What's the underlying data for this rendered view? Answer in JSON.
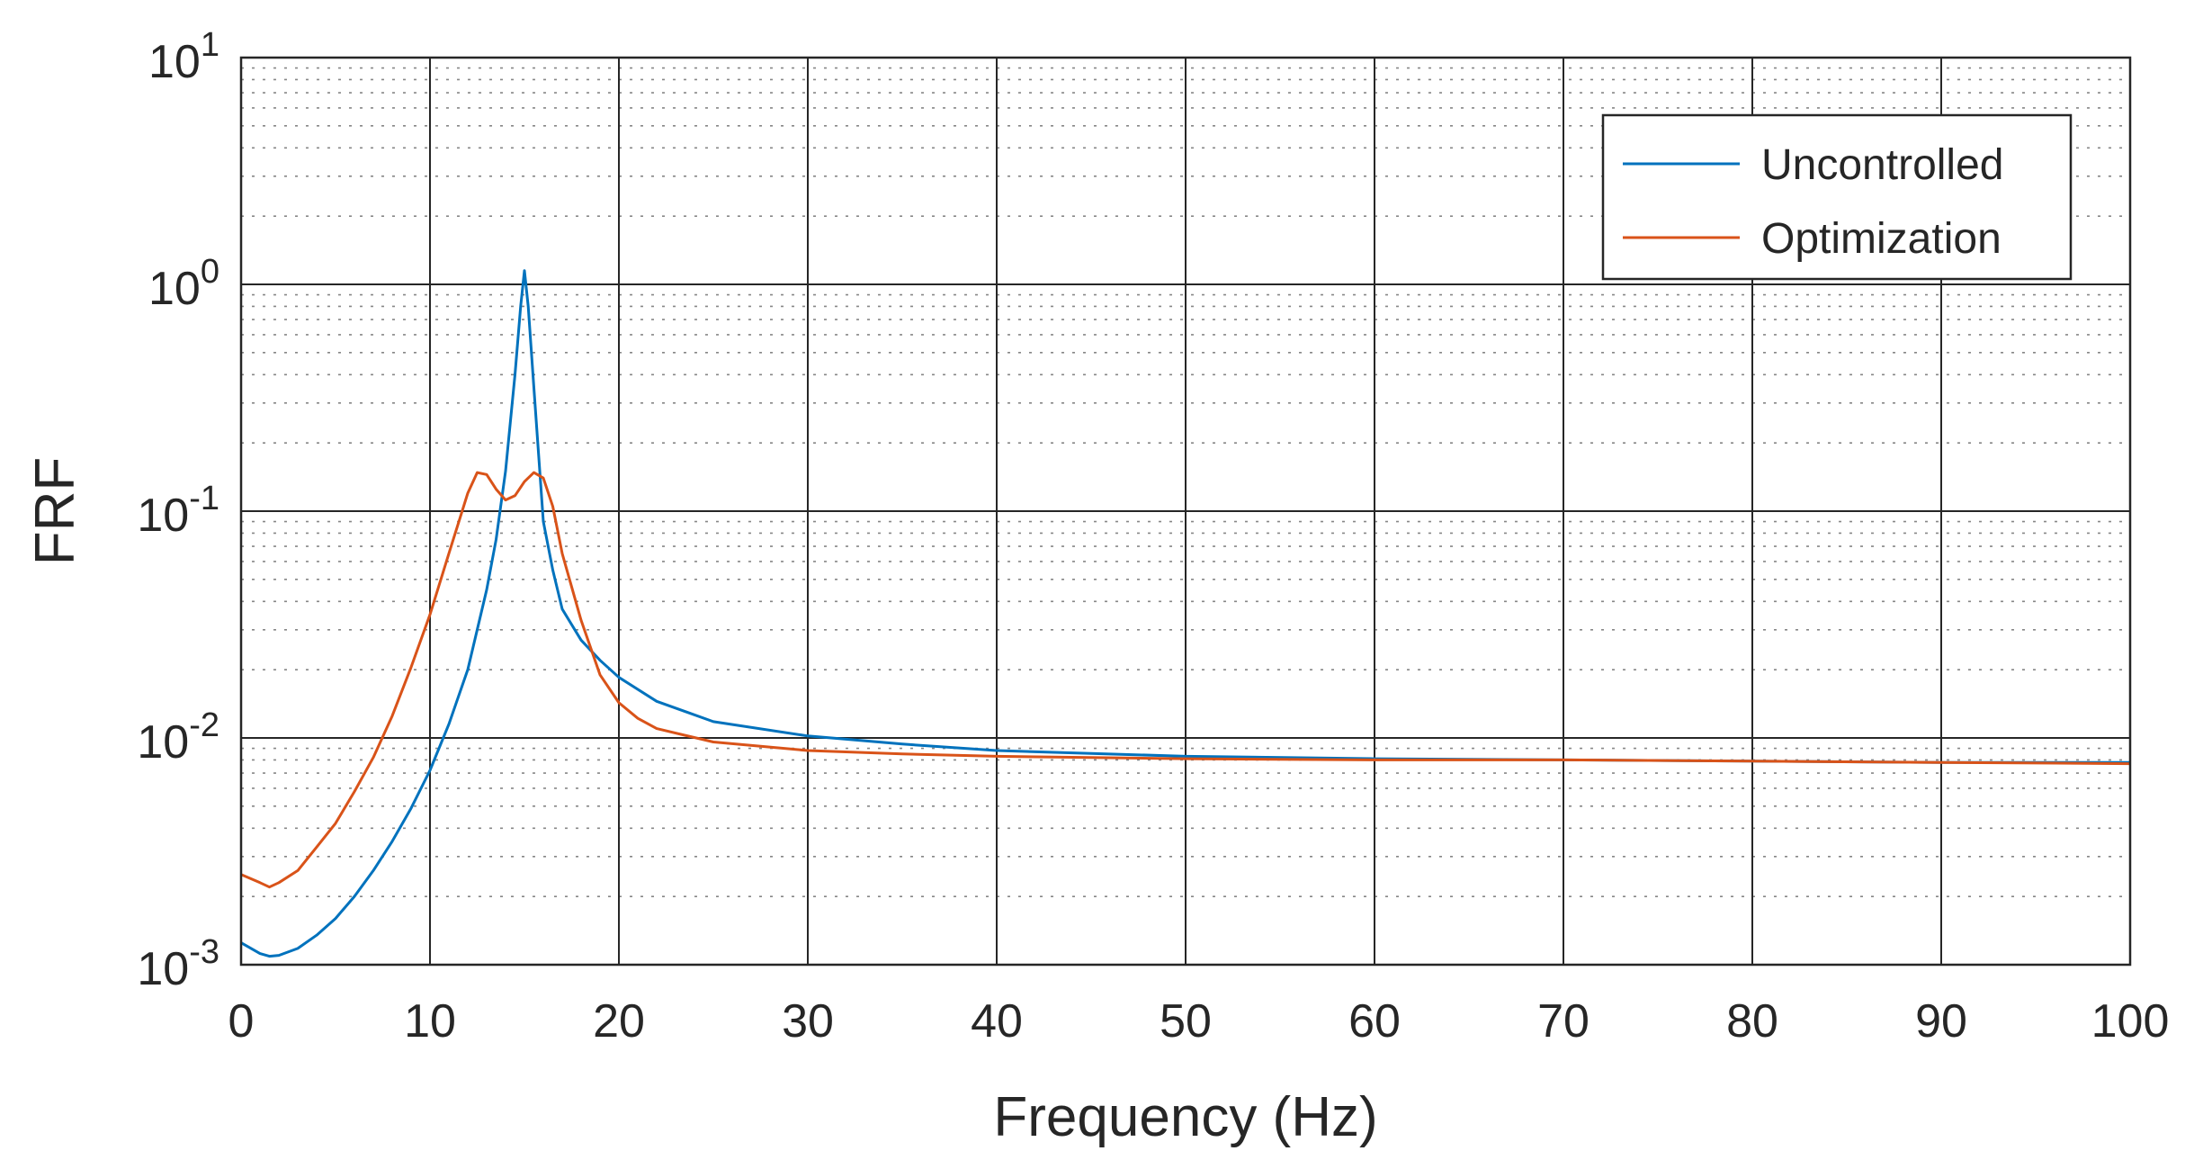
{
  "chart_data": {
    "type": "line",
    "xlabel": "Frequency (Hz)",
    "ylabel": "FRF",
    "xlim": [
      0,
      100
    ],
    "ylim": [
      0.001,
      10
    ],
    "yscale": "log",
    "grid": true,
    "minor_grid": true,
    "legend_position": "top-right",
    "x_ticks": [
      "0",
      "10",
      "20",
      "30",
      "40",
      "50",
      "60",
      "70",
      "80",
      "90",
      "100"
    ],
    "y_ticks": [
      {
        "base": "10",
        "exp": "-3",
        "value": 0.001
      },
      {
        "base": "10",
        "exp": "-2",
        "value": 0.01
      },
      {
        "base": "10",
        "exp": "-1",
        "value": 0.1
      },
      {
        "base": "10",
        "exp": "0",
        "value": 1
      },
      {
        "base": "10",
        "exp": "1",
        "value": 10
      }
    ],
    "series": [
      {
        "name": "Uncontrolled",
        "color": "#0072BD",
        "points": [
          [
            0,
            0.00125
          ],
          [
            1,
            0.00112
          ],
          [
            1.5,
            0.00109
          ],
          [
            2,
            0.0011
          ],
          [
            3,
            0.00118
          ],
          [
            4,
            0.00135
          ],
          [
            5,
            0.0016
          ],
          [
            6,
            0.002
          ],
          [
            7,
            0.0026
          ],
          [
            8,
            0.0035
          ],
          [
            9,
            0.0049
          ],
          [
            10,
            0.0072
          ],
          [
            11,
            0.0115
          ],
          [
            12,
            0.02
          ],
          [
            13,
            0.045
          ],
          [
            13.5,
            0.075
          ],
          [
            14,
            0.15
          ],
          [
            14.5,
            0.4
          ],
          [
            14.8,
            0.8
          ],
          [
            15.0,
            1.15
          ],
          [
            15.2,
            0.8
          ],
          [
            15.5,
            0.35
          ],
          [
            16,
            0.09
          ],
          [
            16.5,
            0.055
          ],
          [
            17,
            0.037
          ],
          [
            18,
            0.027
          ],
          [
            19,
            0.022
          ],
          [
            20,
            0.0185
          ],
          [
            22,
            0.0145
          ],
          [
            25,
            0.0118
          ],
          [
            30,
            0.0102
          ],
          [
            35,
            0.0094
          ],
          [
            40,
            0.0088
          ],
          [
            50,
            0.0083
          ],
          [
            60,
            0.0081
          ],
          [
            70,
            0.008
          ],
          [
            80,
            0.0079
          ],
          [
            90,
            0.0078
          ],
          [
            100,
            0.0078
          ]
        ]
      },
      {
        "name": "Optimization",
        "color": "#D95319",
        "points": [
          [
            0,
            0.0025
          ],
          [
            1,
            0.0023
          ],
          [
            1.5,
            0.0022
          ],
          [
            2,
            0.0023
          ],
          [
            3,
            0.0026
          ],
          [
            4,
            0.0033
          ],
          [
            5,
            0.0042
          ],
          [
            6,
            0.0058
          ],
          [
            7,
            0.0082
          ],
          [
            8,
            0.0125
          ],
          [
            9,
            0.0205
          ],
          [
            10,
            0.035
          ],
          [
            11,
            0.065
          ],
          [
            12,
            0.12
          ],
          [
            12.5,
            0.148
          ],
          [
            13,
            0.145
          ],
          [
            13.5,
            0.125
          ],
          [
            14,
            0.112
          ],
          [
            14.5,
            0.117
          ],
          [
            15,
            0.135
          ],
          [
            15.5,
            0.148
          ],
          [
            16,
            0.14
          ],
          [
            16.5,
            0.105
          ],
          [
            17,
            0.065
          ],
          [
            18,
            0.033
          ],
          [
            19,
            0.019
          ],
          [
            20,
            0.0143
          ],
          [
            21,
            0.0122
          ],
          [
            22,
            0.011
          ],
          [
            25,
            0.0096
          ],
          [
            30,
            0.0088
          ],
          [
            35,
            0.0085
          ],
          [
            40,
            0.0083
          ],
          [
            50,
            0.0081
          ],
          [
            60,
            0.008
          ],
          [
            70,
            0.008
          ],
          [
            80,
            0.0079
          ],
          [
            90,
            0.0078
          ],
          [
            100,
            0.0077
          ]
        ]
      }
    ]
  }
}
